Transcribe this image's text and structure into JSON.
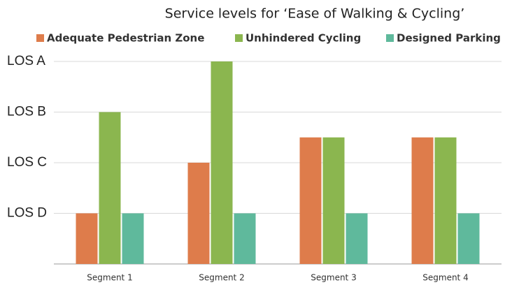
{
  "chart_data": {
    "type": "bar",
    "title": "Service levels for ‘Ease of Walking & Cycling’",
    "categories": [
      "Segment 1",
      "Segment 2",
      "Segment 3",
      "Segment 4"
    ],
    "series": [
      {
        "name": "Adequate Pedestrian Zone",
        "color": "#de7c4b",
        "values": [
          1,
          2,
          2.5,
          2.5
        ]
      },
      {
        "name": "Unhindered Cycling",
        "color": "#8bb64f",
        "values": [
          3,
          4,
          2.5,
          2.5
        ]
      },
      {
        "name": "Designed Parking",
        "color": "#5fb99c",
        "values": [
          1,
          1,
          1,
          1
        ]
      }
    ],
    "ylim": [
      0,
      4
    ],
    "yticks": [
      {
        "value": 1,
        "label": "LOS D"
      },
      {
        "value": 2,
        "label": "LOS C"
      },
      {
        "value": 3,
        "label": "LOS B"
      },
      {
        "value": 4,
        "label": "LOS A"
      }
    ],
    "grid": true,
    "legend": "top"
  }
}
